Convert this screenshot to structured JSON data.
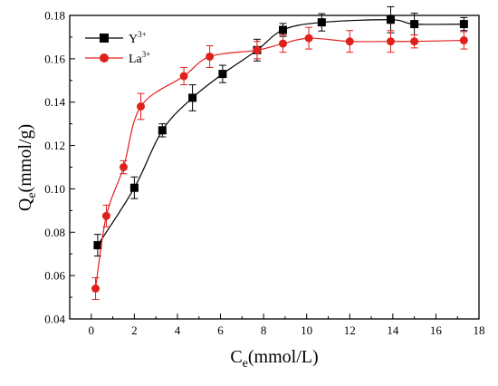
{
  "chart_data": {
    "type": "scatter",
    "xlabel": {
      "main": "C",
      "sub": "e",
      "rest": "(mmol/L)"
    },
    "ylabel": {
      "main": "Q",
      "sub": "e",
      "rest": "(mmol/g)"
    },
    "xlim": [
      -1,
      18
    ],
    "ylim": [
      0.04,
      0.18
    ],
    "xticks": [
      0,
      2,
      4,
      6,
      8,
      10,
      12,
      14,
      16,
      18
    ],
    "yticks": [
      0.04,
      0.06,
      0.08,
      0.1,
      0.12,
      0.14,
      0.16,
      0.18
    ],
    "ytick_labels": [
      "0.04",
      "0.06",
      "0.08",
      "0.10",
      "0.12",
      "0.14",
      "0.16",
      "0.18"
    ],
    "legend_position": "top-left",
    "series": [
      {
        "name": "Y",
        "name_sup": "3+",
        "color": "#000000",
        "marker": "square",
        "x": [
          0.3,
          2.0,
          3.3,
          4.7,
          6.1,
          7.7,
          8.9,
          10.7,
          13.9,
          15.0,
          17.3
        ],
        "y": [
          0.074,
          0.1005,
          0.127,
          0.142,
          0.153,
          0.164,
          0.1733,
          0.1768,
          0.178,
          0.176,
          0.176
        ],
        "err": [
          0.005,
          0.005,
          0.003,
          0.006,
          0.004,
          0.005,
          0.003,
          0.004,
          0.006,
          0.005,
          0.003
        ]
      },
      {
        "name": "La",
        "name_sup": "3+",
        "color": "#e0201c",
        "marker": "circle",
        "x": [
          0.2,
          0.7,
          1.5,
          2.3,
          4.3,
          5.5,
          7.7,
          8.9,
          10.1,
          12.0,
          13.9,
          15.0,
          17.3
        ],
        "y": [
          0.054,
          0.0875,
          0.11,
          0.138,
          0.152,
          0.161,
          0.164,
          0.167,
          0.1695,
          0.168,
          0.168,
          0.168,
          0.1685
        ],
        "err": [
          0.005,
          0.005,
          0.003,
          0.006,
          0.004,
          0.005,
          0.004,
          0.004,
          0.005,
          0.005,
          0.005,
          0.003,
          0.004
        ]
      }
    ]
  }
}
